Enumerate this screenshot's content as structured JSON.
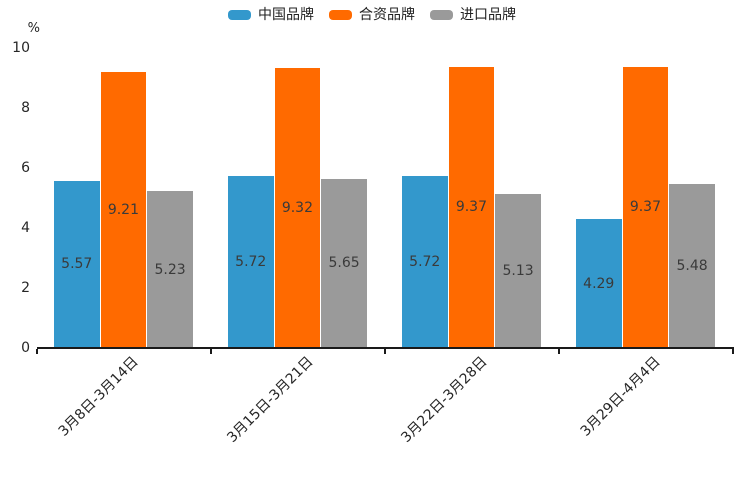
{
  "chart_data": {
    "type": "bar",
    "title": "",
    "ylabel": "%",
    "xlabel": "",
    "ylim": [
      0,
      10
    ],
    "yticks": [
      0,
      2,
      4,
      6,
      8,
      10
    ],
    "grid": false,
    "legend_position": "top",
    "value_labels": "centered-inside-bars",
    "categories": [
      "3月8日-3月14日",
      "3月15日-3月21日",
      "3月22日-3月28日",
      "3月29日-4月4日"
    ],
    "series": [
      {
        "name": "中国品牌",
        "color": "#3398CC",
        "values": [
          5.57,
          5.72,
          5.72,
          4.29
        ]
      },
      {
        "name": "合资品牌",
        "color": "#FF6A00",
        "values": [
          9.21,
          9.32,
          9.37,
          9.37
        ]
      },
      {
        "name": "进口品牌",
        "color": "#9A9A9A",
        "values": [
          5.23,
          5.65,
          5.13,
          5.48
        ]
      }
    ],
    "colors": {
      "axis": "#1a1a1a",
      "tick_text": "#262626",
      "value_text": "#3a3a3a",
      "background": "#ffffff"
    }
  }
}
